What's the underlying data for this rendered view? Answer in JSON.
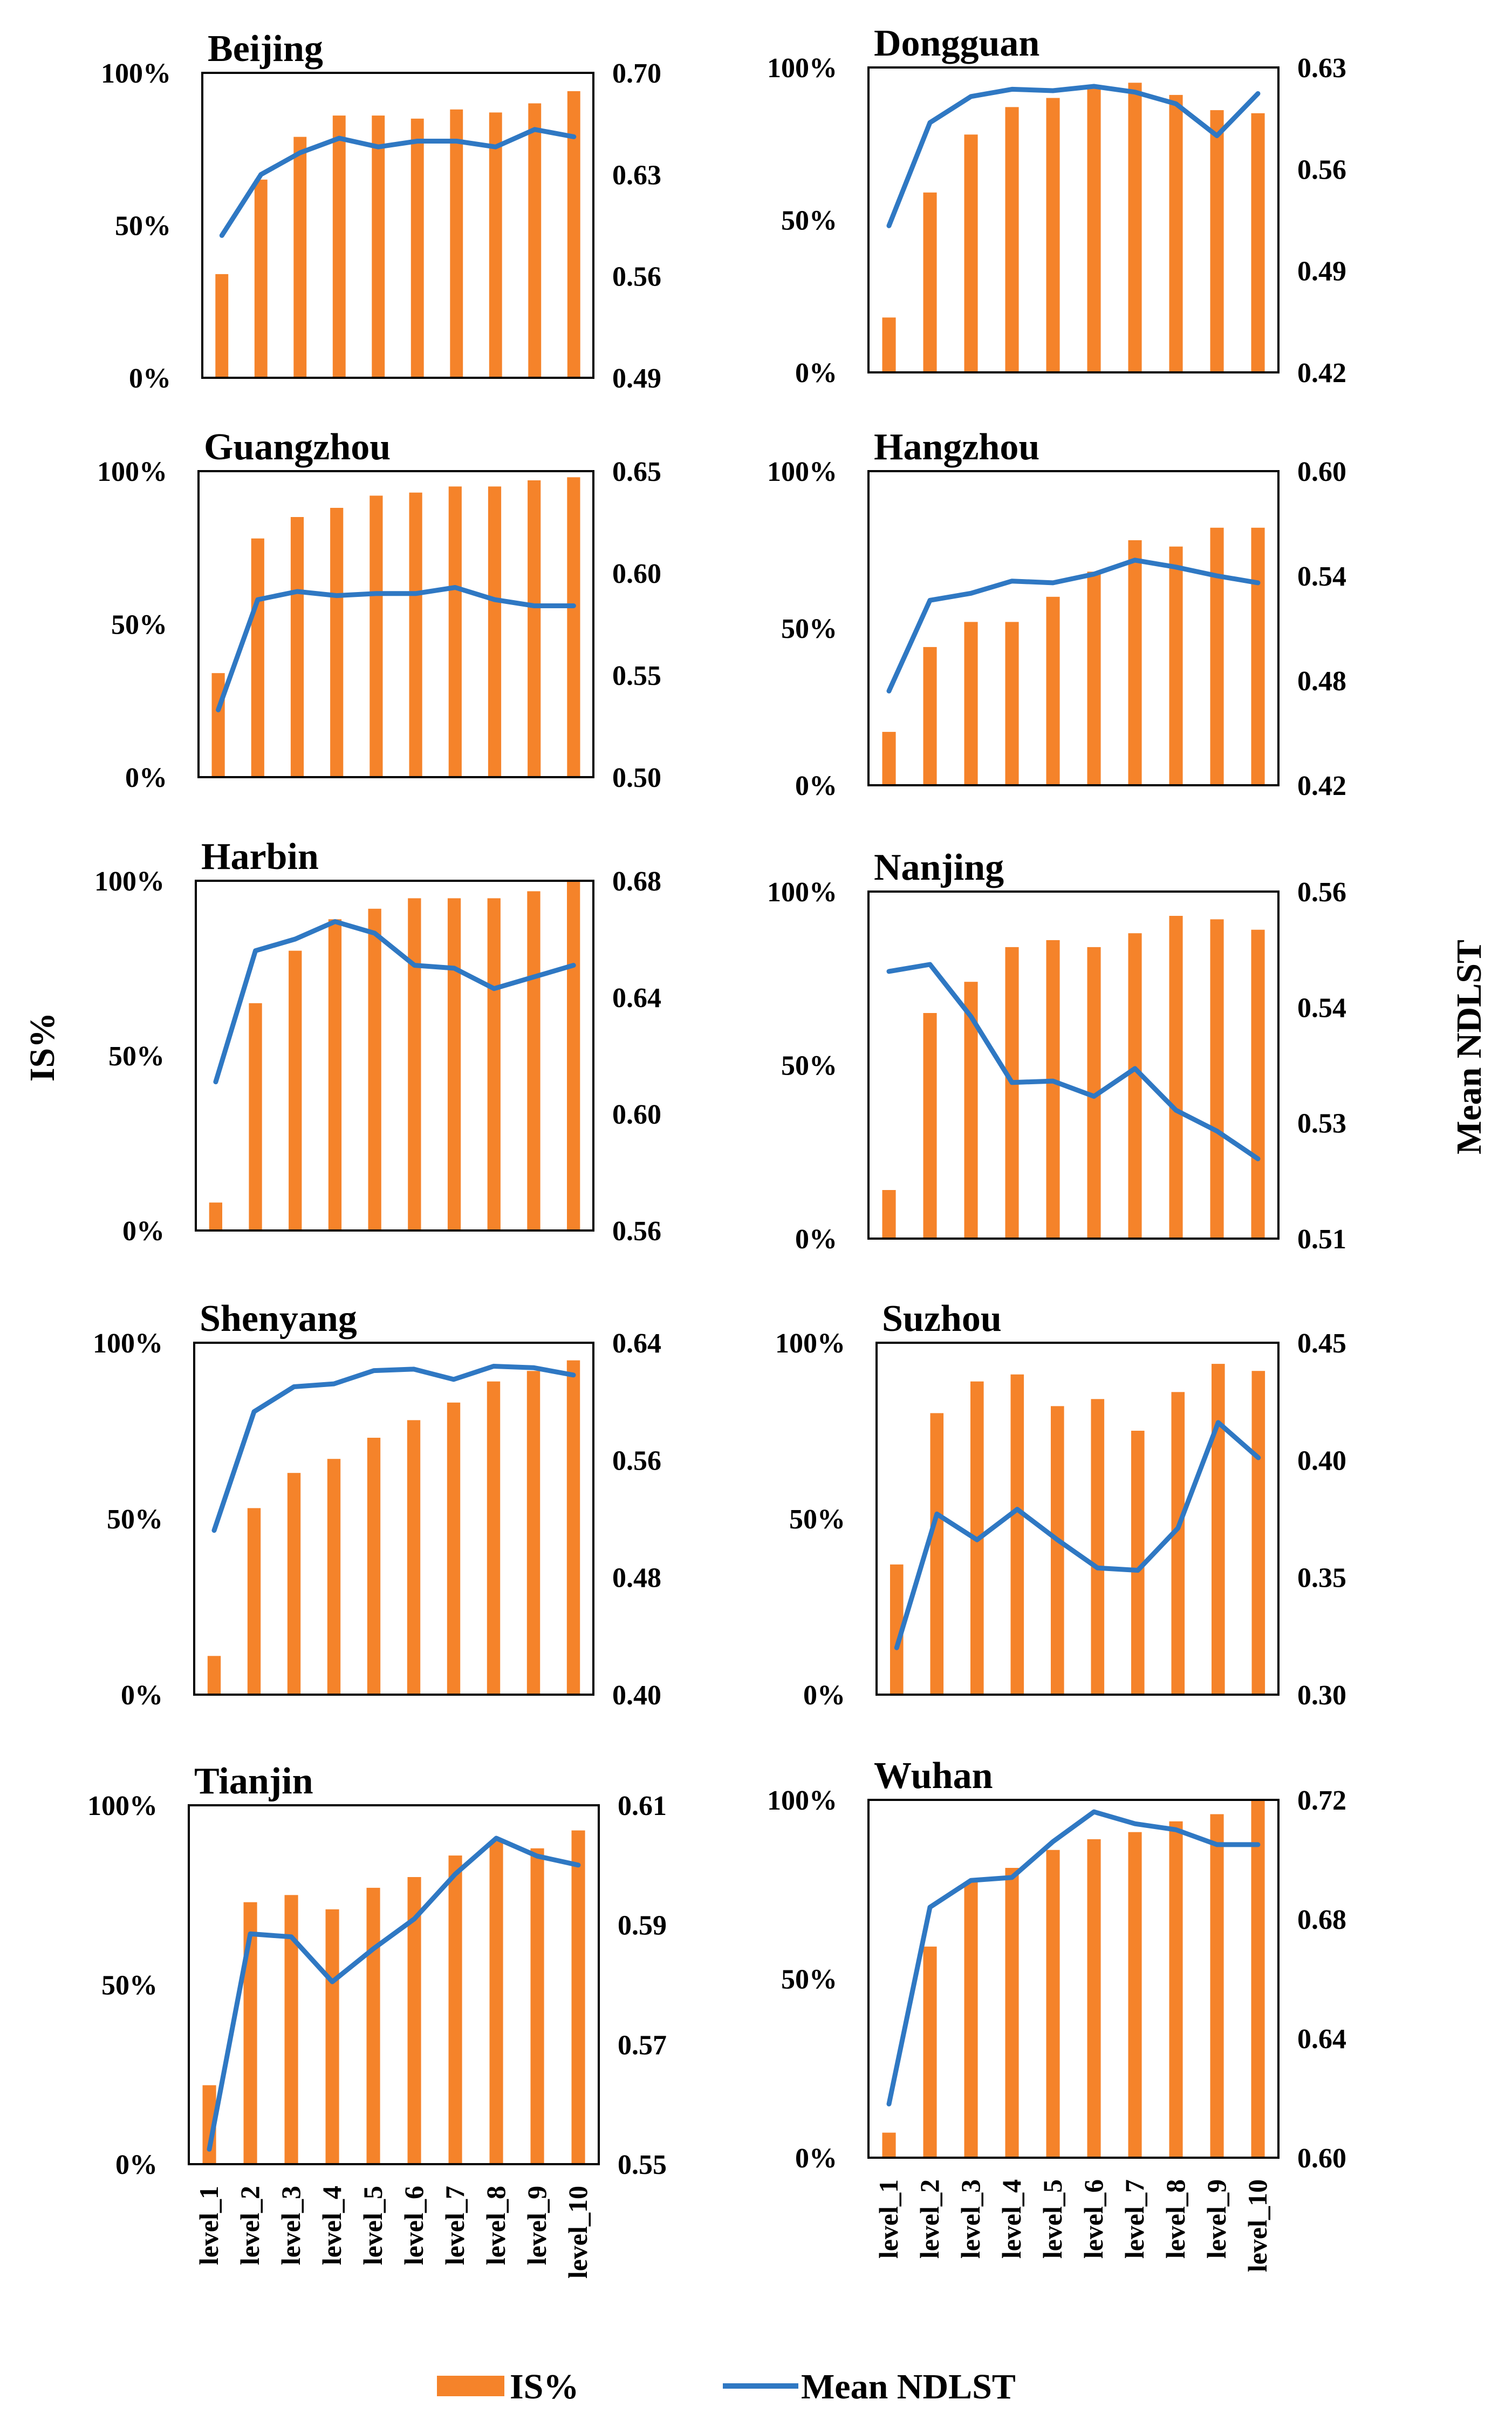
{
  "figure": {
    "left_axis_title": "IS%",
    "right_axis_title": "Mean NDLST",
    "legend": {
      "bar_label": "IS%",
      "line_label": "Mean NDLST"
    },
    "colors": {
      "bar": "#F5832A",
      "line": "#2F78C3",
      "frame": "#000000"
    }
  },
  "chart_data": [
    {
      "type": "bar+line",
      "title": "Beijing",
      "categories": [
        "level_1",
        "level_2",
        "level_3",
        "level_4",
        "level_5",
        "level_6",
        "level_7",
        "level_8",
        "level_9",
        "level_10"
      ],
      "series": [
        {
          "name": "IS%",
          "axis": "left",
          "values": [
            34,
            65,
            79,
            86,
            86,
            85,
            88,
            87,
            90,
            94
          ]
        },
        {
          "name": "Mean NDLST",
          "axis": "right",
          "values": [
            0.588,
            0.63,
            0.645,
            0.655,
            0.649,
            0.653,
            0.653,
            0.649,
            0.661,
            0.656
          ]
        }
      ],
      "left_ticks": [
        "0%",
        "50%",
        "100%"
      ],
      "right_ticks": [
        "0.49",
        "0.56",
        "0.63",
        "0.70"
      ],
      "ylim": [
        0,
        100
      ],
      "y2lim": [
        0.49,
        0.7
      ],
      "show_categories": false
    },
    {
      "type": "bar+line",
      "title": "Dongguan",
      "categories": [
        "level_1",
        "level_2",
        "level_3",
        "level_4",
        "level_5",
        "level_6",
        "level_7",
        "level_8",
        "level_9",
        "level_10"
      ],
      "series": [
        {
          "name": "IS%",
          "axis": "left",
          "values": [
            18,
            59,
            78,
            87,
            90,
            94,
            95,
            91,
            86,
            85
          ]
        },
        {
          "name": "Mean NDLST",
          "axis": "right",
          "values": [
            0.521,
            0.592,
            0.61,
            0.615,
            0.614,
            0.617,
            0.613,
            0.605,
            0.583,
            0.612
          ]
        }
      ],
      "left_ticks": [
        "0%",
        "50%",
        "100%"
      ],
      "right_ticks": [
        "0.42",
        "0.49",
        "0.56",
        "0.63"
      ],
      "ylim": [
        0,
        100
      ],
      "y2lim": [
        0.42,
        0.63
      ],
      "show_categories": false
    },
    {
      "type": "bar+line",
      "title": "Guangzhou",
      "categories": [
        "level_1",
        "level_2",
        "level_3",
        "level_4",
        "level_5",
        "level_6",
        "level_7",
        "level_8",
        "level_9",
        "level_10"
      ],
      "series": [
        {
          "name": "IS%",
          "axis": "left",
          "values": [
            34,
            78,
            85,
            88,
            92,
            93,
            95,
            95,
            97,
            98
          ]
        },
        {
          "name": "Mean NDLST",
          "axis": "right",
          "values": [
            0.533,
            0.587,
            0.591,
            0.589,
            0.59,
            0.59,
            0.593,
            0.587,
            0.584,
            0.584
          ]
        }
      ],
      "left_ticks": [
        "0%",
        "50%",
        "100%"
      ],
      "right_ticks": [
        "0.50",
        "0.55",
        "0.60",
        "0.65"
      ],
      "ylim": [
        0,
        100
      ],
      "y2lim": [
        0.5,
        0.65
      ],
      "show_categories": false
    },
    {
      "type": "bar+line",
      "title": "Hangzhou",
      "categories": [
        "level_1",
        "level_2",
        "level_3",
        "level_4",
        "level_5",
        "level_6",
        "level_7",
        "level_8",
        "level_9",
        "level_10"
      ],
      "series": [
        {
          "name": "IS%",
          "axis": "left",
          "values": [
            17,
            44,
            52,
            52,
            60,
            68,
            78,
            76,
            82,
            82
          ]
        },
        {
          "name": "Mean NDLST",
          "axis": "right",
          "values": [
            0.474,
            0.526,
            0.53,
            0.537,
            0.536,
            0.541,
            0.549,
            0.545,
            0.54,
            0.536
          ]
        }
      ],
      "left_ticks": [
        "0%",
        "50%",
        "100%"
      ],
      "right_ticks": [
        "0.42",
        "0.48",
        "0.54",
        "0.60"
      ],
      "ylim": [
        0,
        100
      ],
      "y2lim": [
        0.42,
        0.6
      ],
      "show_categories": false
    },
    {
      "type": "bar+line",
      "title": "Harbin",
      "categories": [
        "level_1",
        "level_2",
        "level_3",
        "level_4",
        "level_5",
        "level_6",
        "level_7",
        "level_8",
        "level_9",
        "level_10"
      ],
      "series": [
        {
          "name": "IS%",
          "axis": "left",
          "values": [
            8,
            65,
            80,
            89,
            92,
            95,
            95,
            95,
            97,
            100
          ]
        },
        {
          "name": "Mean NDLST",
          "axis": "right",
          "values": [
            0.611,
            0.656,
            0.66,
            0.666,
            0.662,
            0.651,
            0.65,
            0.643,
            0.647,
            0.651
          ]
        }
      ],
      "left_ticks": [
        "0%",
        "50%",
        "100%"
      ],
      "right_ticks": [
        "0.56",
        "0.60",
        "0.64",
        "0.68"
      ],
      "ylim": [
        0,
        100
      ],
      "y2lim": [
        0.56,
        0.68
      ],
      "show_categories": false
    },
    {
      "type": "bar+line",
      "title": "Nanjing",
      "categories": [
        "level_1",
        "level_2",
        "level_3",
        "level_4",
        "level_5",
        "level_6",
        "level_7",
        "level_8",
        "level_9",
        "level_10"
      ],
      "series": [
        {
          "name": "IS%",
          "axis": "left",
          "values": [
            14,
            65,
            74,
            84,
            86,
            84,
            88,
            93,
            92,
            89
          ]
        },
        {
          "name": "Mean NDLST",
          "axis": "right",
          "values": [
            0.5485,
            0.5495,
            0.542,
            0.5325,
            0.5327,
            0.5305,
            0.5345,
            0.5285,
            0.5255,
            0.5215
          ]
        }
      ],
      "left_ticks": [
        "0%",
        "50%",
        "100%"
      ],
      "right_ticks": [
        "0.51",
        "0.53",
        "0.54",
        "0.56"
      ],
      "ylim": [
        0,
        100
      ],
      "y2lim": [
        0.51,
        0.56
      ],
      "show_categories": false
    },
    {
      "type": "bar+line",
      "title": "Shenyang",
      "categories": [
        "level_1",
        "level_2",
        "level_3",
        "level_4",
        "level_5",
        "level_6",
        "level_7",
        "level_8",
        "level_9",
        "level_10"
      ],
      "series": [
        {
          "name": "IS%",
          "axis": "left",
          "values": [
            11,
            53,
            63,
            67,
            73,
            78,
            83,
            89,
            92,
            95
          ]
        },
        {
          "name": "Mean NDLST",
          "axis": "right",
          "values": [
            0.512,
            0.593,
            0.61,
            0.612,
            0.621,
            0.622,
            0.615,
            0.624,
            0.623,
            0.618
          ]
        }
      ],
      "left_ticks": [
        "0%",
        "50%",
        "100%"
      ],
      "right_ticks": [
        "0.40",
        "0.48",
        "0.56",
        "0.64"
      ],
      "ylim": [
        0,
        100
      ],
      "y2lim": [
        0.4,
        0.64
      ],
      "show_categories": false
    },
    {
      "type": "bar+line",
      "title": "Suzhou",
      "categories": [
        "level_1",
        "level_2",
        "level_3",
        "level_4",
        "level_5",
        "level_6",
        "level_7",
        "level_8",
        "level_9",
        "level_10"
      ],
      "series": [
        {
          "name": "IS%",
          "axis": "left",
          "values": [
            37,
            80,
            89,
            91,
            82,
            84,
            75,
            86,
            94,
            92
          ]
        },
        {
          "name": "Mean NDLST",
          "axis": "right",
          "values": [
            0.32,
            0.377,
            0.366,
            0.379,
            0.366,
            0.354,
            0.353,
            0.371,
            0.416,
            0.401
          ]
        }
      ],
      "left_ticks": [
        "0%",
        "50%",
        "100%"
      ],
      "right_ticks": [
        "0.30",
        "0.35",
        "0.40",
        "0.45"
      ],
      "ylim": [
        0,
        100
      ],
      "y2lim": [
        0.3,
        0.45
      ],
      "show_categories": false
    },
    {
      "type": "bar+line",
      "title": "Tianjin",
      "categories": [
        "level_1",
        "level_2",
        "level_3",
        "level_4",
        "level_5",
        "level_6",
        "level_7",
        "level_8",
        "level_9",
        "level_10"
      ],
      "series": [
        {
          "name": "IS%",
          "axis": "left",
          "values": [
            22,
            73,
            75,
            71,
            77,
            80,
            86,
            90,
            88,
            93
          ]
        },
        {
          "name": "Mean NDLST",
          "axis": "right",
          "values": [
            0.5525,
            0.5885,
            0.588,
            0.5805,
            0.586,
            0.591,
            0.5985,
            0.6045,
            0.6015,
            0.6
          ]
        }
      ],
      "left_ticks": [
        "0%",
        "50%",
        "100%"
      ],
      "right_ticks": [
        "0.55",
        "0.57",
        "0.59",
        "0.61"
      ],
      "ylim": [
        0,
        100
      ],
      "y2lim": [
        0.55,
        0.61
      ],
      "show_categories": true
    },
    {
      "type": "bar+line",
      "title": "Wuhan",
      "categories": [
        "level_1",
        "level_2",
        "level_3",
        "level_4",
        "level_5",
        "level_6",
        "level_7",
        "level_8",
        "level_9",
        "level_10"
      ],
      "series": [
        {
          "name": "IS%",
          "axis": "left",
          "values": [
            7,
            59,
            77,
            81,
            86,
            89,
            91,
            94,
            96,
            100
          ]
        },
        {
          "name": "Mean NDLST",
          "axis": "right",
          "values": [
            0.618,
            0.684,
            0.693,
            0.694,
            0.706,
            0.716,
            0.712,
            0.71,
            0.705,
            0.705
          ]
        }
      ],
      "left_ticks": [
        "0%",
        "50%",
        "100%"
      ],
      "right_ticks": [
        "0.60",
        "0.64",
        "0.68",
        "0.72"
      ],
      "ylim": [
        0,
        100
      ],
      "y2lim": [
        0.6,
        0.72
      ],
      "show_categories": true
    }
  ]
}
